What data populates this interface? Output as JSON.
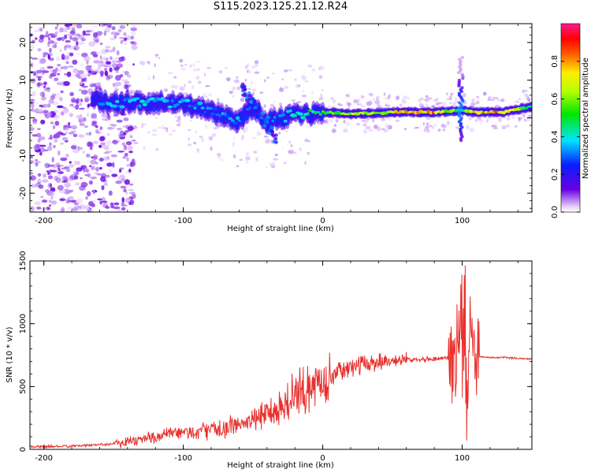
{
  "title": "S115.2023.125.21.12.R24",
  "chart_data": [
    {
      "type": "heatmap",
      "xlabel": "Height of straight line (km)",
      "ylabel": "Frequency (Hz)",
      "xlim": [
        -210,
        150
      ],
      "ylim": [
        -25,
        25
      ],
      "x_ticks": [
        -200,
        -100,
        0,
        100
      ],
      "y_ticks": [
        -20,
        -10,
        0,
        10,
        20
      ],
      "colorbar": {
        "label": "Normalized spectral amplitude",
        "range": [
          0,
          1
        ],
        "ticks": [
          0.0,
          0.2,
          0.4,
          0.6,
          0.8
        ],
        "colormap": "rainbow (white-violet-blue-cyan-green-yellow-red-magenta)"
      },
      "ridge": {
        "x": [
          -165,
          -150,
          -130,
          -110,
          -90,
          -75,
          -60,
          -50,
          -40,
          -30,
          -20,
          -10,
          0,
          20,
          50,
          80,
          100,
          110,
          130,
          150
        ],
        "freq": [
          5,
          4,
          4,
          4,
          3,
          1,
          -1,
          3,
          -1,
          0,
          1,
          1,
          1.5,
          1,
          1.5,
          1.5,
          2,
          1.5,
          1.5,
          3
        ],
        "amplitude": [
          0.3,
          0.4,
          0.4,
          0.4,
          0.35,
          0.35,
          0.35,
          0.3,
          0.3,
          0.35,
          0.45,
          0.5,
          0.55,
          0.7,
          0.75,
          0.85,
          0.5,
          0.85,
          0.85,
          0.45
        ]
      }
    },
    {
      "type": "line",
      "xlabel": "Height of straight line (km)",
      "ylabel": "SNR (10 * v/v)",
      "xlim": [
        -210,
        150
      ],
      "ylim": [
        0,
        1500
      ],
      "x_ticks": [
        -200,
        -100,
        0,
        100
      ],
      "y_ticks": [
        0,
        500,
        1000,
        1500
      ],
      "color": "#e8312e",
      "series": [
        {
          "x": [
            -210,
            -180,
            -150,
            -130,
            -110,
            -90,
            -70,
            -50,
            -40,
            -30,
            -20,
            -10,
            0,
            10,
            20,
            30,
            40,
            50,
            60,
            70,
            80,
            90,
            95,
            100,
            103,
            106,
            110,
            120,
            130,
            150
          ],
          "values": [
            20,
            25,
            45,
            80,
            120,
            140,
            170,
            230,
            300,
            330,
            420,
            480,
            550,
            610,
            650,
            680,
            700,
            710,
            715,
            720,
            720,
            730,
            720,
            1100,
            300,
            950,
            740,
            730,
            730,
            720
          ]
        }
      ]
    }
  ]
}
